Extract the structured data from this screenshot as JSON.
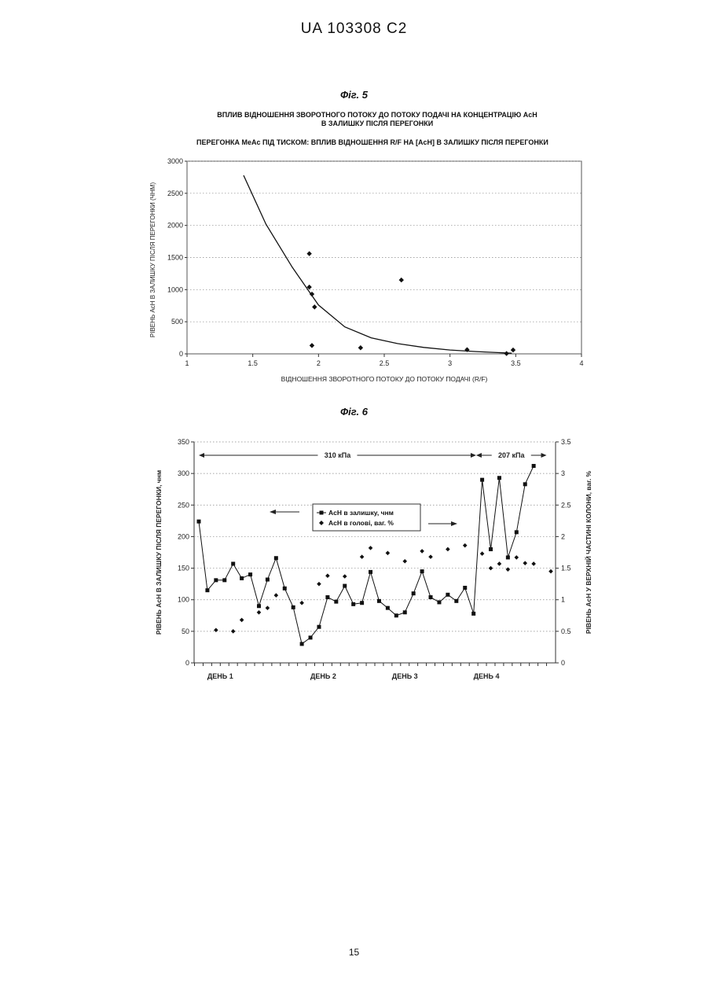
{
  "header": "UA   103308   C2",
  "page_number": "15",
  "fig5": {
    "label": "Фіг. 5",
    "title_line1": "ВПЛИВ ВІДНОШЕННЯ ЗВОРОТНОГО ПОТОКУ ДО ПОТОКУ ПОДАЧІ НА КОНЦЕНТРАЦІЮ AcH",
    "title_line2": "В ЗАЛИШКУ ПІСЛЯ ПЕРЕГОНКИ",
    "subtitle": "ПЕРЕГОНКА MeAc ПІД ТИСКОМ:  ВПЛИВ ВІДНОШЕННЯ R/F НА [AcH] В ЗАЛИШКУ ПІСЛЯ ПЕРЕГОНКИ"
  },
  "fig6": {
    "label": "Фіг. 6"
  },
  "chart_data": [
    {
      "type": "scatter",
      "xlabel": "ВІДНОШЕННЯ ЗВОРОТНОГО ПОТОКУ ДО ПОТОКУ ПОДАЧІ (R/F)",
      "ylabel": "РІВЕНЬ AcH В ЗАЛИШКУ ПІСЛЯ ПЕРЕГОНКИ (ЧНМ)",
      "xlim": [
        1,
        4
      ],
      "ylim": [
        0,
        3000
      ],
      "xticks": [
        "1",
        "1.5",
        "2",
        "2.5",
        "3",
        "3.5",
        "4"
      ],
      "yticks": [
        "0",
        "500",
        "1000",
        "1500",
        "2000",
        "2500",
        "3000"
      ],
      "grid": "horizontal dotted",
      "points": [
        {
          "x": 1.93,
          "y": 1560
        },
        {
          "x": 1.93,
          "y": 1040
        },
        {
          "x": 1.95,
          "y": 930
        },
        {
          "x": 1.97,
          "y": 730
        },
        {
          "x": 1.95,
          "y": 130
        },
        {
          "x": 2.32,
          "y": 95
        },
        {
          "x": 2.63,
          "y": 1150
        },
        {
          "x": 3.13,
          "y": 65
        },
        {
          "x": 3.43,
          "y": 5
        },
        {
          "x": 3.48,
          "y": 60
        }
      ],
      "trend": [
        {
          "x": 1.43,
          "y": 2780
        },
        {
          "x": 1.6,
          "y": 2020
        },
        {
          "x": 1.8,
          "y": 1350
        },
        {
          "x": 2.0,
          "y": 760
        },
        {
          "x": 2.2,
          "y": 420
        },
        {
          "x": 2.4,
          "y": 250
        },
        {
          "x": 2.6,
          "y": 160
        },
        {
          "x": 2.8,
          "y": 100
        },
        {
          "x": 3.0,
          "y": 60
        },
        {
          "x": 3.2,
          "y": 35
        },
        {
          "x": 3.47,
          "y": 10
        }
      ]
    },
    {
      "type": "line",
      "ylabel_left": "РІВЕНЬ AcH В ЗАЛИШКУ ПІСЛЯ ПЕРЕГОНКИ, чнм",
      "ylabel_right": "РІВЕНЬ AcH У ВЕРХНІЙ ЧАСТИНІ КОЛОНИ, ваг. %",
      "ylim_left": [
        0,
        350
      ],
      "ylim_right": [
        0,
        3.5
      ],
      "yticks_left": [
        "0",
        "50",
        "100",
        "150",
        "200",
        "250",
        "300",
        "350"
      ],
      "yticks_right": [
        "0",
        "0.5",
        "1",
        "1.5",
        "2",
        "2.5",
        "3",
        "3.5"
      ],
      "x_count": 41,
      "category_labels": [
        {
          "i": 2.5,
          "label": "ДЕНЬ 1"
        },
        {
          "i": 14.5,
          "label": "ДЕНЬ 2"
        },
        {
          "i": 24,
          "label": "ДЕНЬ 3"
        },
        {
          "i": 33.5,
          "label": "ДЕНЬ 4"
        }
      ],
      "pressure_labels": [
        {
          "label": "310 кПа",
          "from": 0,
          "to": 32.3
        },
        {
          "label": "207 кПа",
          "from": 32.3,
          "to": 40.5
        }
      ],
      "grid": "horizontal dotted",
      "series": [
        {
          "name": "AcH в залишку, чнм",
          "axis": "left",
          "marker": "square",
          "values": [
            224,
            115,
            131,
            131,
            157,
            134,
            140,
            90,
            132,
            166,
            118,
            88,
            30,
            40,
            57,
            104,
            97,
            122,
            93,
            95,
            144,
            98,
            87,
            75,
            80,
            110,
            145,
            104,
            96,
            108,
            98,
            119,
            78,
            290,
            180,
            293,
            167,
            207,
            283,
            312
          ]
        },
        {
          "name": "AcH в голові, ваг. %",
          "axis": "right",
          "marker": "diamond",
          "points": [
            {
              "i": 2,
              "v": 0.52
            },
            {
              "i": 4,
              "v": 0.5
            },
            {
              "i": 5,
              "v": 0.68
            },
            {
              "i": 7,
              "v": 0.8
            },
            {
              "i": 8,
              "v": 0.87
            },
            {
              "i": 9,
              "v": 1.07
            },
            {
              "i": 12,
              "v": 0.95
            },
            {
              "i": 14,
              "v": 1.25
            },
            {
              "i": 15,
              "v": 1.38
            },
            {
              "i": 17,
              "v": 1.37
            },
            {
              "i": 19,
              "v": 1.68
            },
            {
              "i": 20,
              "v": 1.82
            },
            {
              "i": 22,
              "v": 1.74
            },
            {
              "i": 24,
              "v": 1.61
            },
            {
              "i": 26,
              "v": 1.77
            },
            {
              "i": 27,
              "v": 1.68
            },
            {
              "i": 29,
              "v": 1.8
            },
            {
              "i": 31,
              "v": 1.86
            },
            {
              "i": 33,
              "v": 1.73
            },
            {
              "i": 34,
              "v": 1.5
            },
            {
              "i": 35,
              "v": 1.57
            },
            {
              "i": 36,
              "v": 1.48
            },
            {
              "i": 37,
              "v": 1.67
            },
            {
              "i": 38,
              "v": 1.58
            },
            {
              "i": 39,
              "v": 1.57
            },
            {
              "i": 41,
              "v": 1.45
            }
          ]
        }
      ]
    }
  ]
}
